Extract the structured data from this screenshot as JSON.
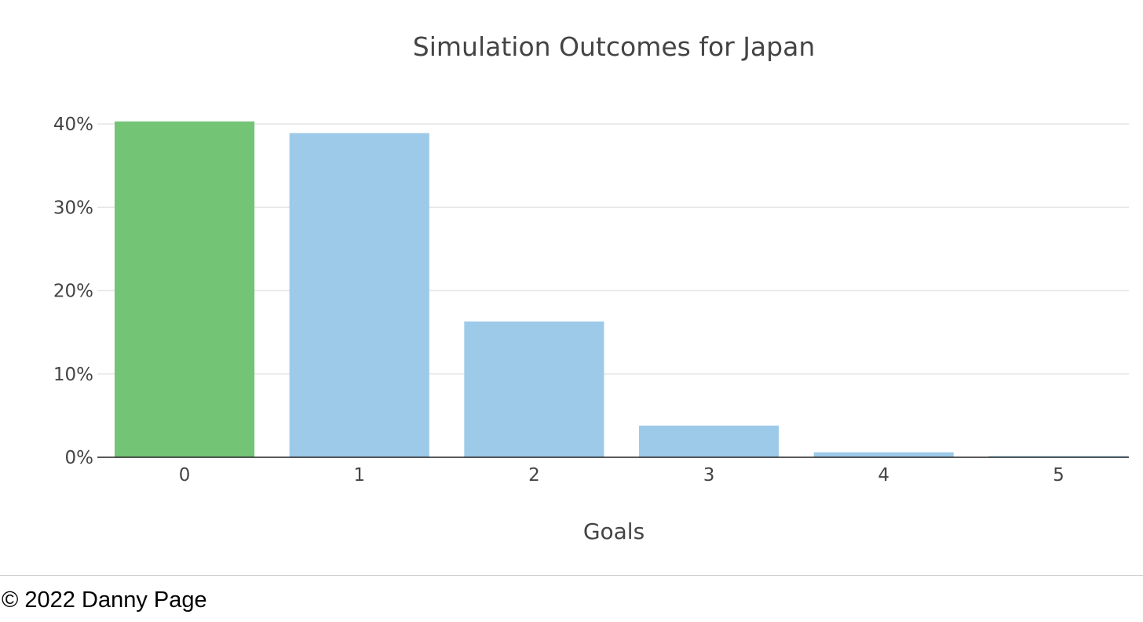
{
  "chart_data": {
    "type": "bar",
    "title": "Simulation Outcomes for Japan",
    "xlabel": "Goals",
    "ylabel": "",
    "categories": [
      "0",
      "1",
      "2",
      "3",
      "4",
      "5"
    ],
    "values": [
      40.3,
      38.9,
      16.3,
      3.8,
      0.6,
      0.15
    ],
    "value_unit": "%",
    "ylim": [
      0,
      40
    ],
    "yticks": [
      0,
      10,
      20,
      30,
      40
    ],
    "ytick_labels": [
      "0%",
      "10%",
      "20%",
      "30%",
      "40%"
    ],
    "grid": true,
    "legend": "none",
    "colors": {
      "highlight": "#74c476",
      "default": "#9ecae9"
    },
    "highlight_category": "0"
  },
  "footer": {
    "copyright": "© 2022 Danny Page"
  }
}
